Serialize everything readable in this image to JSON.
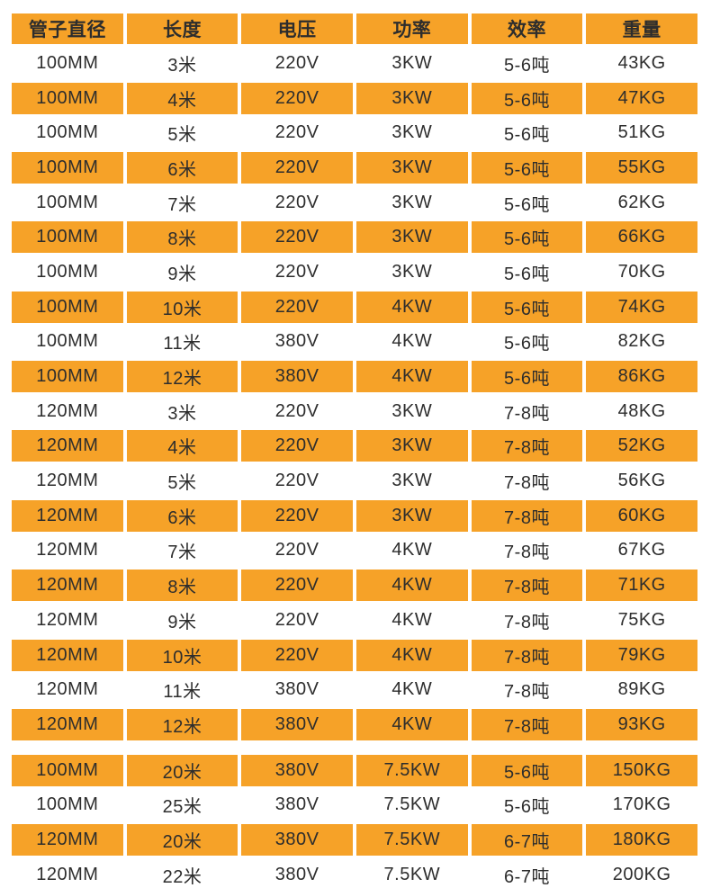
{
  "chart_data": {
    "type": "table",
    "columns": [
      "管子直径",
      "长度",
      "电压",
      "功率",
      "效率",
      "重量"
    ],
    "rows": [
      [
        "100MM",
        "3米",
        "220V",
        "3KW",
        "5-6吨",
        "43KG"
      ],
      [
        "100MM",
        "4米",
        "220V",
        "3KW",
        "5-6吨",
        "47KG"
      ],
      [
        "100MM",
        "5米",
        "220V",
        "3KW",
        "5-6吨",
        "51KG"
      ],
      [
        "100MM",
        "6米",
        "220V",
        "3KW",
        "5-6吨",
        "55KG"
      ],
      [
        "100MM",
        "7米",
        "220V",
        "3KW",
        "5-6吨",
        "62KG"
      ],
      [
        "100MM",
        "8米",
        "220V",
        "3KW",
        "5-6吨",
        "66KG"
      ],
      [
        "100MM",
        "9米",
        "220V",
        "3KW",
        "5-6吨",
        "70KG"
      ],
      [
        "100MM",
        "10米",
        "220V",
        "4KW",
        "5-6吨",
        "74KG"
      ],
      [
        "100MM",
        "11米",
        "380V",
        "4KW",
        "5-6吨",
        "82KG"
      ],
      [
        "100MM",
        "12米",
        "380V",
        "4KW",
        "5-6吨",
        "86KG"
      ],
      [
        "120MM",
        "3米",
        "220V",
        "3KW",
        "7-8吨",
        "48KG"
      ],
      [
        "120MM",
        "4米",
        "220V",
        "3KW",
        "7-8吨",
        "52KG"
      ],
      [
        "120MM",
        "5米",
        "220V",
        "3KW",
        "7-8吨",
        "56KG"
      ],
      [
        "120MM",
        "6米",
        "220V",
        "3KW",
        "7-8吨",
        "60KG"
      ],
      [
        "120MM",
        "7米",
        "220V",
        "4KW",
        "7-8吨",
        "67KG"
      ],
      [
        "120MM",
        "8米",
        "220V",
        "4KW",
        "7-8吨",
        "71KG"
      ],
      [
        "120MM",
        "9米",
        "220V",
        "4KW",
        "7-8吨",
        "75KG"
      ],
      [
        "120MM",
        "10米",
        "220V",
        "4KW",
        "7-8吨",
        "79KG"
      ],
      [
        "120MM",
        "11米",
        "380V",
        "4KW",
        "7-8吨",
        "89KG"
      ],
      [
        "120MM",
        "12米",
        "380V",
        "4KW",
        "7-8吨",
        "93KG"
      ],
      [
        "100MM",
        "20米",
        "380V",
        "7.5KW",
        "5-6吨",
        "150KG"
      ],
      [
        "100MM",
        "25米",
        "380V",
        "7.5KW",
        "5-6吨",
        "170KG"
      ],
      [
        "120MM",
        "20米",
        "380V",
        "7.5KW",
        "6-7吨",
        "180KG"
      ],
      [
        "120MM",
        "22米",
        "380V",
        "7.5KW",
        "6-7吨",
        "200KG"
      ]
    ]
  },
  "sections": [
    {
      "row_start": 0,
      "row_end": 19,
      "first_row_highlighted": false
    },
    {
      "row_start": 20,
      "row_end": 23,
      "first_row_highlighted": true
    }
  ],
  "colors": {
    "highlight": "#f6a228",
    "text": "#2d2d2d",
    "background": "#ffffff"
  }
}
